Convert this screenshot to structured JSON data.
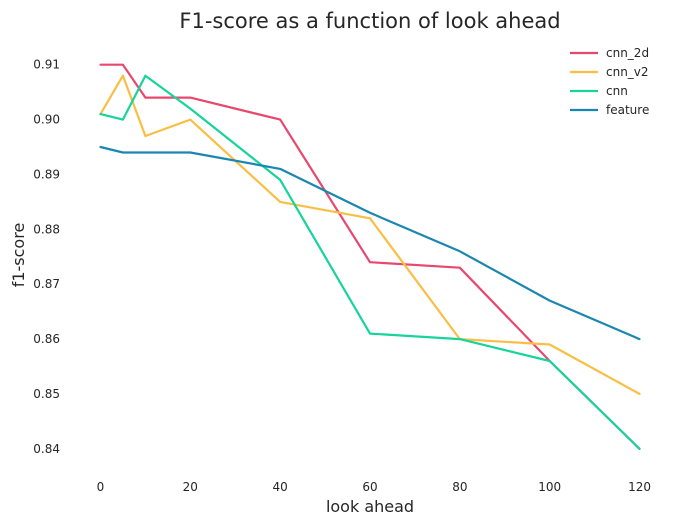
{
  "chart_data": {
    "type": "line",
    "title": "F1-score as a function of look ahead",
    "xlabel": "look ahead",
    "ylabel": "f1-score",
    "xlim": [
      -5,
      125
    ],
    "ylim": [
      0.8365,
      0.9145
    ],
    "xticks": [
      0,
      20,
      40,
      60,
      80,
      100,
      120
    ],
    "yticks": [
      0.84,
      0.85,
      0.86,
      0.87,
      0.88,
      0.89,
      0.9,
      0.91
    ],
    "xtick_labels": [
      "0",
      "20",
      "40",
      "60",
      "80",
      "100",
      "120"
    ],
    "ytick_labels": [
      "0.84",
      "0.85",
      "0.86",
      "0.87",
      "0.88",
      "0.89",
      "0.90",
      "0.91"
    ],
    "grid": false,
    "legend_position": "top-right",
    "series": [
      {
        "name": "cnn_2d",
        "color": "#e8486e",
        "x": [
          0,
          5,
          10,
          20,
          40,
          60,
          80,
          100,
          120
        ],
        "y": [
          0.91,
          0.91,
          0.904,
          0.904,
          0.9,
          0.874,
          0.873,
          0.856,
          0.84
        ]
      },
      {
        "name": "cnn_v2",
        "color": "#f9bf45",
        "x": [
          0,
          5,
          10,
          20,
          40,
          60,
          80,
          100,
          120
        ],
        "y": [
          0.901,
          0.908,
          0.897,
          0.9,
          0.885,
          0.882,
          0.86,
          0.859,
          0.85
        ]
      },
      {
        "name": "cnn",
        "color": "#16d49a",
        "x": [
          0,
          5,
          10,
          20,
          40,
          60,
          80,
          100,
          120
        ],
        "y": [
          0.901,
          0.9,
          0.908,
          0.902,
          0.889,
          0.861,
          0.86,
          0.856,
          0.84
        ]
      },
      {
        "name": "feature",
        "color": "#1a87b0",
        "x": [
          0,
          5,
          10,
          20,
          40,
          60,
          80,
          100,
          120
        ],
        "y": [
          0.895,
          0.894,
          0.894,
          0.894,
          0.891,
          0.883,
          0.876,
          0.867,
          0.86
        ]
      }
    ]
  }
}
